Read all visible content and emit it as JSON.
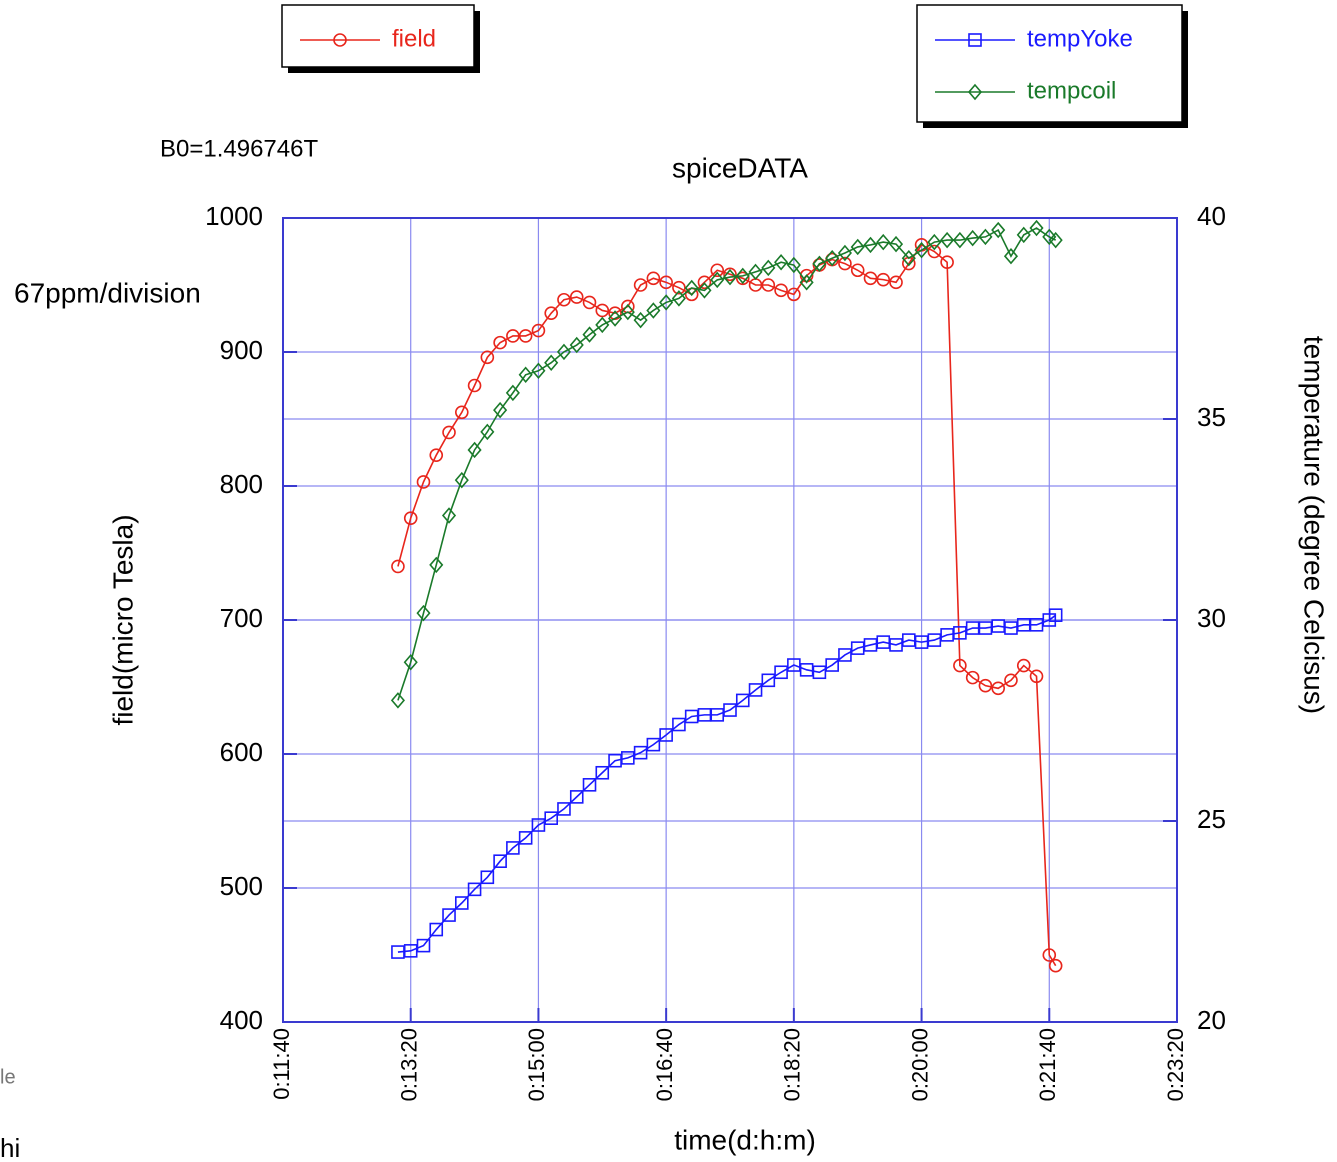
{
  "chart_data": {
    "type": "line",
    "title": "spiceDATA",
    "annotations": [
      "B0=1.496746T",
      "67ppm/division"
    ],
    "side_text": [
      "le",
      "hi"
    ],
    "x_label": "time(d:h:m)",
    "y_label": "field(micro Tesla)",
    "y2_label": "temperature (degree Celcisus)",
    "x": [
      790,
      800,
      810,
      820,
      830,
      840,
      850,
      860,
      870,
      880,
      890,
      900,
      910,
      920,
      930,
      940,
      950,
      960,
      970,
      980,
      990,
      1000,
      1010,
      1020,
      1030,
      1040,
      1050,
      1060,
      1070,
      1080,
      1090,
      1100,
      1110,
      1120,
      1130,
      1140,
      1150,
      1160,
      1170,
      1180,
      1190,
      1200,
      1210,
      1220,
      1230,
      1240,
      1250,
      1260,
      1270,
      1280,
      1290,
      1300,
      1305
    ],
    "series": [
      {
        "name": "field",
        "color": "#e8261c",
        "marker": "circle",
        "values": [
          740,
          776,
          803,
          823,
          840,
          855,
          875,
          896,
          907,
          912,
          912,
          916,
          929,
          939,
          941,
          937,
          931,
          929,
          934,
          950,
          955,
          952,
          948,
          943,
          952,
          961,
          958,
          955,
          950,
          950,
          946,
          943,
          957,
          965,
          969,
          966,
          961,
          955,
          954,
          952,
          966,
          980,
          975,
          967,
          666,
          657,
          651,
          649,
          655,
          666,
          658,
          450,
          442
        ]
      },
      {
        "name": "tempYoke",
        "color": "#1a1aff",
        "marker": "square",
        "axis": "y2",
        "values": [
          21.74,
          21.77,
          21.9,
          22.3,
          22.66,
          22.96,
          23.3,
          23.6,
          24.0,
          24.33,
          24.58,
          24.9,
          25.07,
          25.3,
          25.6,
          25.9,
          26.2,
          26.5,
          26.57,
          26.7,
          26.9,
          27.14,
          27.4,
          27.6,
          27.64,
          27.64,
          27.76,
          28.0,
          28.26,
          28.5,
          28.7,
          28.88,
          28.76,
          28.7,
          28.88,
          29.13,
          29.3,
          29.38,
          29.45,
          29.38,
          29.5,
          29.45,
          29.5,
          29.63,
          29.68,
          29.8,
          29.8,
          29.85,
          29.8,
          29.88,
          29.88,
          30.0,
          30.12
        ]
      },
      {
        "name": "tempcoil",
        "color": "#1a7a2a",
        "marker": "diamond",
        "axis": "y2",
        "values": [
          28.0,
          28.95,
          30.17,
          31.37,
          32.6,
          33.48,
          34.23,
          34.68,
          35.22,
          35.65,
          36.1,
          36.2,
          36.4,
          36.67,
          36.84,
          37.1,
          37.34,
          37.5,
          37.66,
          37.46,
          37.7,
          37.9,
          38.0,
          38.26,
          38.2,
          38.46,
          38.53,
          38.56,
          38.66,
          38.76,
          38.9,
          38.83,
          38.4,
          38.86,
          39.0,
          39.13,
          39.28,
          39.33,
          39.4,
          39.35,
          39.0,
          39.2,
          39.4,
          39.45,
          39.45,
          39.5,
          39.53,
          39.7,
          39.05,
          39.58,
          39.75,
          39.53,
          39.45
        ]
      }
    ],
    "xlim": [
      700,
      1400
    ],
    "xticks": [
      {
        "value": 700,
        "label": "0:11:40"
      },
      {
        "value": 800,
        "label": "0:13:20"
      },
      {
        "value": 900,
        "label": "0:15:00"
      },
      {
        "value": 1000,
        "label": "0:16:40"
      },
      {
        "value": 1100,
        "label": "0:18:20"
      },
      {
        "value": 1200,
        "label": "0:20:00"
      },
      {
        "value": 1300,
        "label": "0:21:40"
      },
      {
        "value": 1400,
        "label": "0:23:20"
      }
    ],
    "ylim": [
      400,
      1000
    ],
    "yticks": [
      400,
      500,
      600,
      700,
      800,
      900,
      1000
    ],
    "y2lim": [
      20,
      40
    ],
    "y2ticks": [
      20,
      25,
      30,
      35,
      40
    ],
    "grid": true,
    "axis_color": "#3a3ad0",
    "grid_color": "#8a8af0"
  }
}
